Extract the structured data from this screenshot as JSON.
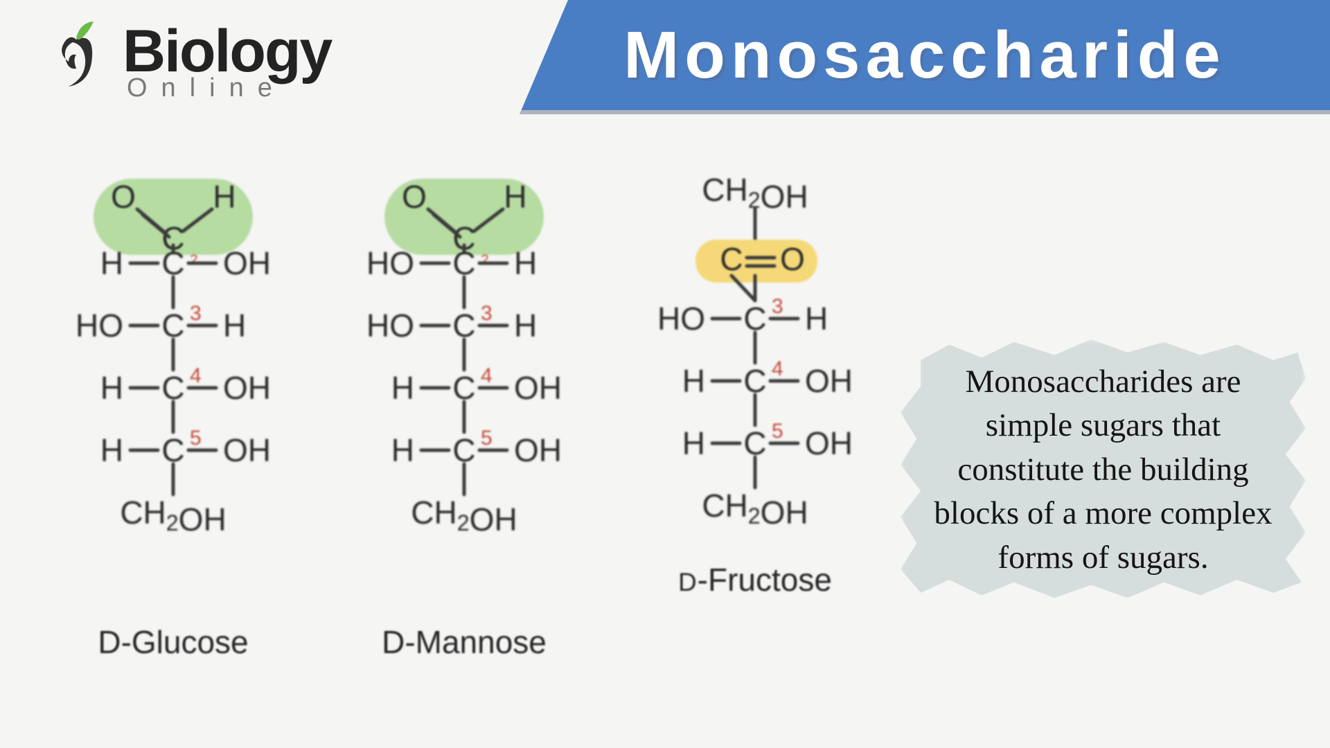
{
  "header": {
    "logo_main": "Biology",
    "logo_sub": "Online",
    "banner_title": "Monosaccharide",
    "logo_colors": {
      "swirl_dark": "#2f2f2f",
      "leaf": "#6bbb47"
    },
    "banner_bg": "#4a7ec4",
    "banner_underline": "#aeb4bb"
  },
  "page_bg": "#f5f5f4",
  "callout": {
    "text": "Monosaccharides are simple sugars that constitute the building blocks of a more complex forms of sugars.",
    "bg_color": "#d5dedd",
    "text_color": "#151515",
    "font_family": "Comic Sans MS",
    "font_size_pt": 35
  },
  "chem": {
    "text_color": "#2a2a2a",
    "bond_color": "#3a3a3a",
    "number_color": "#c24a3a",
    "aldehyde_highlight": "#b6dca2",
    "ketone_highlight": "#f5d978",
    "font_size_main": 46,
    "font_size_number": 30,
    "mol_name_font_size": 46
  },
  "molecules": [
    {
      "name": "D-Glucose",
      "top_group": "aldehyde",
      "highlight": "aldehyde",
      "carbons": [
        {
          "n": "2",
          "left": "H",
          "right": "OH"
        },
        {
          "n": "3",
          "left": "HO",
          "right": "H"
        },
        {
          "n": "4",
          "left": "H",
          "right": "OH"
        },
        {
          "n": "5",
          "left": "H",
          "right": "OH"
        }
      ],
      "bottom": "CH2OH"
    },
    {
      "name": "D-Mannose",
      "top_group": "aldehyde",
      "highlight": "aldehyde",
      "carbons": [
        {
          "n": "2",
          "left": "HO",
          "right": "H"
        },
        {
          "n": "3",
          "left": "HO",
          "right": "H"
        },
        {
          "n": "4",
          "left": "H",
          "right": "OH"
        },
        {
          "n": "5",
          "left": "H",
          "right": "OH"
        }
      ],
      "bottom": "CH2OH"
    },
    {
      "name": "D-Fructose",
      "name_prefix_smallcaps": true,
      "top_group": "ch2oh_then_ketone",
      "highlight": "ketone",
      "carbons": [
        {
          "n": "3",
          "left": "HO",
          "right": "H"
        },
        {
          "n": "4",
          "left": "H",
          "right": "OH"
        },
        {
          "n": "5",
          "left": "H",
          "right": "OH"
        }
      ],
      "bottom": "CH2OH"
    }
  ]
}
